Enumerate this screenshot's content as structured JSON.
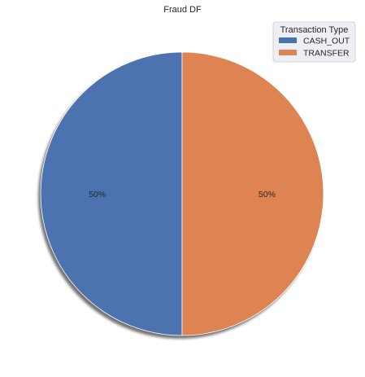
{
  "chart_data": {
    "type": "pie",
    "title": "Fraud DF",
    "categories": [
      "CASH_OUT",
      "TRANSFER"
    ],
    "values": [
      50,
      50
    ],
    "labels": [
      "50%",
      "50%"
    ],
    "colors": [
      "#4c72b0",
      "#dd8452"
    ],
    "start_angle_deg": 90,
    "direction": "counterclockwise",
    "shadow": true,
    "legend": {
      "title": "Transaction Type",
      "placement": "top-right",
      "entries": [
        "CASH_OUT",
        "TRANSFER"
      ]
    }
  }
}
